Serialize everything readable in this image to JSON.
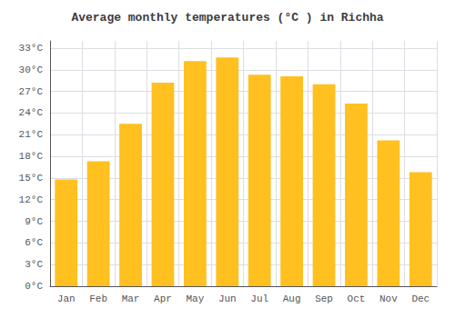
{
  "chart_data": {
    "type": "bar",
    "title": "Average monthly temperatures (°C ) in Richha",
    "categories": [
      "Jan",
      "Feb",
      "Mar",
      "Apr",
      "May",
      "Jun",
      "Jul",
      "Aug",
      "Sep",
      "Oct",
      "Nov",
      "Dec"
    ],
    "values": [
      14.8,
      17.3,
      22.5,
      28.2,
      31.2,
      31.7,
      29.3,
      29.1,
      28.0,
      25.3,
      20.2,
      15.8
    ],
    "color": "#FFC020",
    "ylim": [
      0,
      34
    ],
    "yticks": [
      {
        "value": 0,
        "label": "0°C"
      },
      {
        "value": 3,
        "label": "3°C"
      },
      {
        "value": 6,
        "label": "6°C"
      },
      {
        "value": 9,
        "label": "9°C"
      },
      {
        "value": 12,
        "label": "12°C"
      },
      {
        "value": 15,
        "label": "15°C"
      },
      {
        "value": 18,
        "label": "18°C"
      },
      {
        "value": 21,
        "label": "21°C"
      },
      {
        "value": 24,
        "label": "24°C"
      },
      {
        "value": 27,
        "label": "27°C"
      },
      {
        "value": 30,
        "label": "30°C"
      },
      {
        "value": 33,
        "label": "33°C"
      }
    ],
    "grid": true
  }
}
